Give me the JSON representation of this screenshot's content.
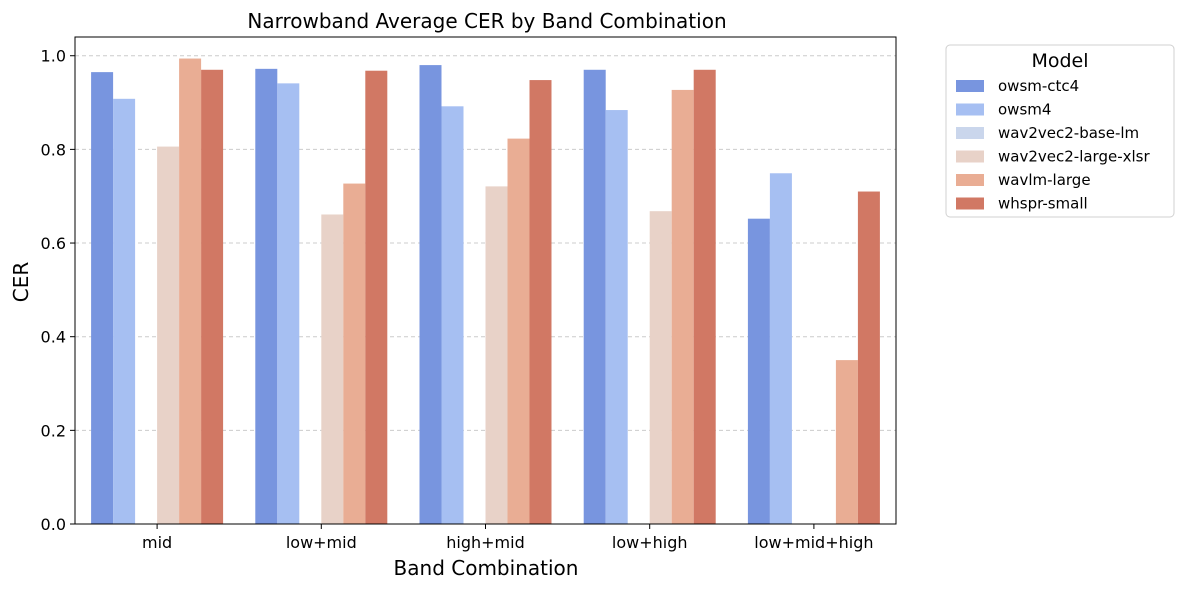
{
  "chart_data": {
    "type": "bar",
    "title": "Narrowband Average CER by Band Combination",
    "xlabel": "Band Combination",
    "ylabel": "CER",
    "ylim": [
      0,
      1.04
    ],
    "yticks": [
      "0.0",
      "0.2",
      "0.4",
      "0.6",
      "0.8",
      "1.0"
    ],
    "grid": "horizontal dashed",
    "legend": {
      "title": "Model",
      "placement": "outside right-top"
    },
    "categories": [
      "mid",
      "low+mid",
      "high+mid",
      "low+high",
      "low+mid+high"
    ],
    "series": [
      {
        "name": "owsm-ctc4",
        "color": "#7895df",
        "values": [
          0.965,
          0.972,
          0.98,
          0.97,
          0.652
        ]
      },
      {
        "name": "owsm4",
        "color": "#a6bff2",
        "values": [
          0.908,
          0.941,
          0.892,
          0.884,
          0.749
        ]
      },
      {
        "name": "wav2vec2-base-lm",
        "color": "#cad6ec",
        "values": [
          0,
          0,
          0,
          0,
          0
        ]
      },
      {
        "name": "wav2vec2-large-xlsr",
        "color": "#e8d2c8",
        "values": [
          0.806,
          0.661,
          0.721,
          0.668,
          0
        ]
      },
      {
        "name": "wavlm-large",
        "color": "#e9ad94",
        "values": [
          0.994,
          0.727,
          0.823,
          0.927,
          0.35
        ]
      },
      {
        "name": "whspr-small",
        "color": "#d17864",
        "values": [
          0.97,
          0.968,
          0.948,
          0.97,
          0.71
        ]
      }
    ]
  }
}
